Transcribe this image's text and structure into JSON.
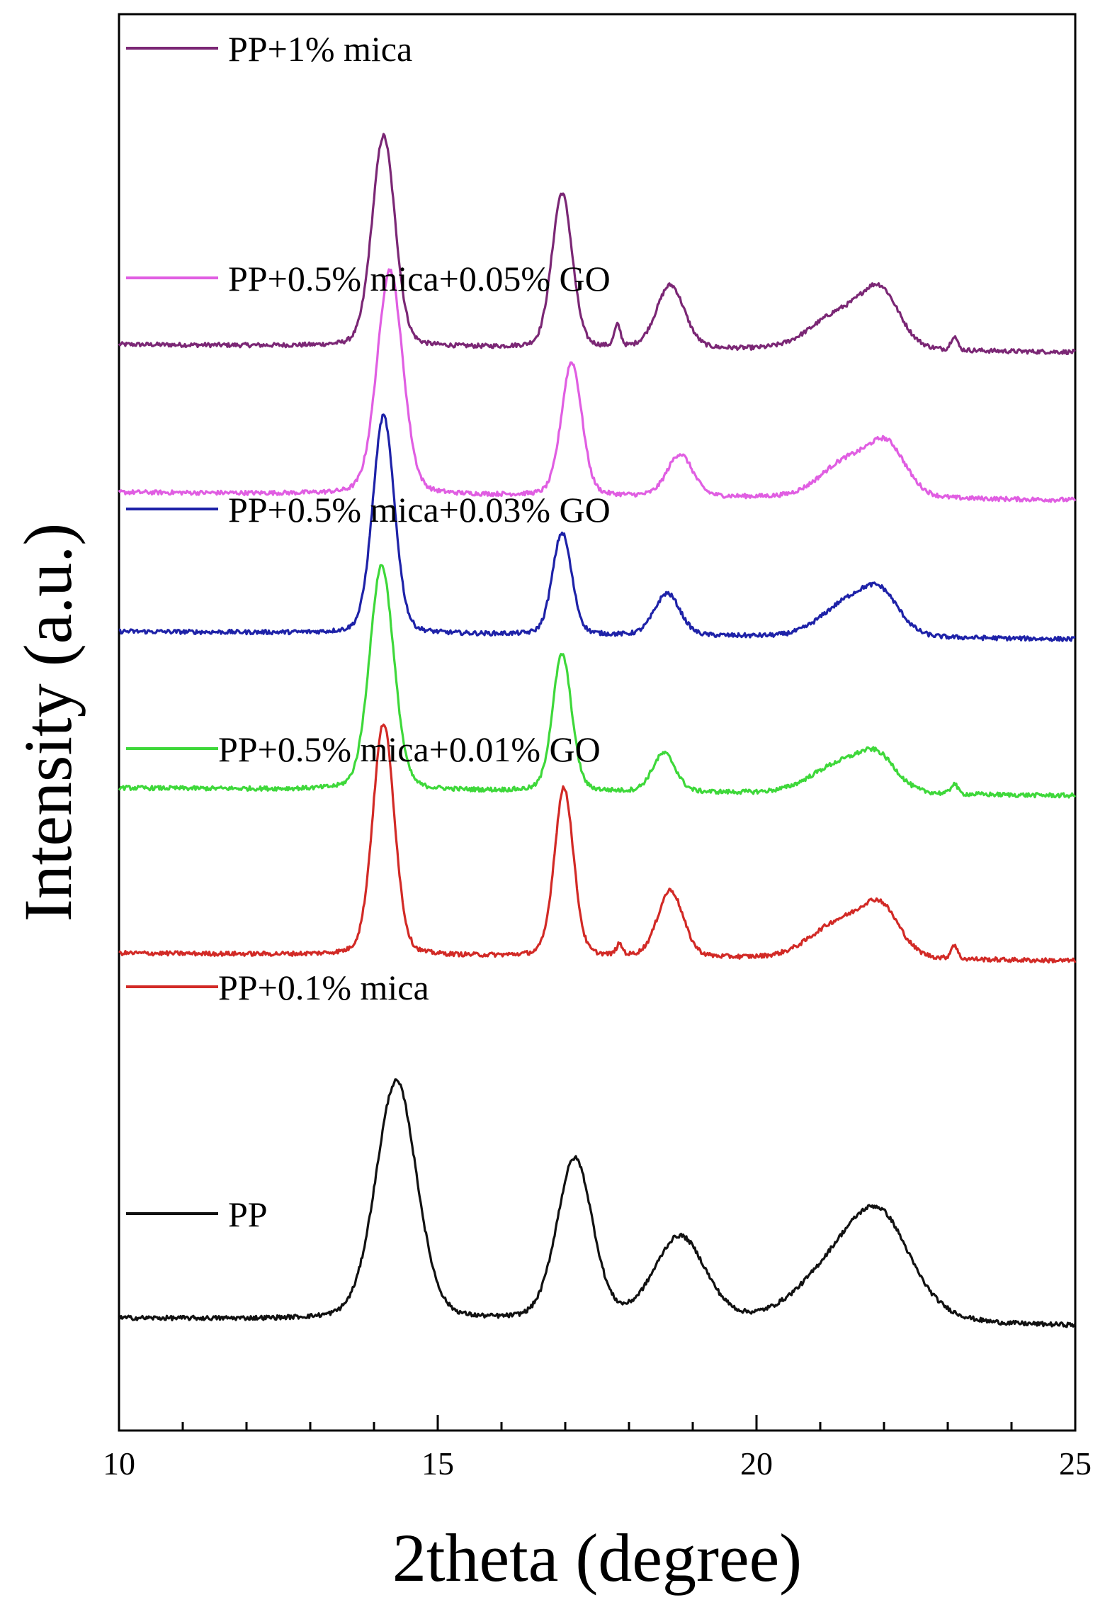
{
  "chart_data": {
    "type": "line",
    "title": "",
    "xlabel": "2theta (degree)",
    "ylabel": "Intensity (a.u.)",
    "xlim": [
      10,
      25
    ],
    "x_ticks": [
      10,
      15,
      20,
      25
    ],
    "y_ticks_shown": false,
    "grid": false,
    "series": [
      {
        "name": "PP+1% mica",
        "color": "#7b2775",
        "baseline": 7.0,
        "peaks": [
          [
            14.15,
            3.0,
            0.18
          ],
          [
            16.95,
            2.2,
            0.16
          ],
          [
            17.82,
            0.3,
            0.05
          ],
          [
            18.65,
            0.9,
            0.22
          ],
          [
            21.3,
            0.5,
            0.45
          ],
          [
            21.95,
            0.75,
            0.3
          ],
          [
            23.1,
            0.2,
            0.05
          ]
        ],
        "points": [
          [
            10,
            7.0
          ],
          [
            12,
            7.05
          ],
          [
            13.5,
            7.3
          ],
          [
            14.15,
            10.1
          ],
          [
            14.6,
            7.7
          ],
          [
            15.5,
            7.15
          ],
          [
            16.5,
            7.3
          ],
          [
            16.95,
            9.2
          ],
          [
            17.3,
            7.4
          ],
          [
            17.82,
            7.3
          ],
          [
            18.65,
            7.9
          ],
          [
            19.5,
            7.05
          ],
          [
            20.5,
            7.0
          ],
          [
            21.3,
            7.5
          ],
          [
            21.95,
            7.8
          ],
          [
            22.7,
            7.1
          ],
          [
            23.1,
            7.2
          ],
          [
            25,
            6.9
          ]
        ]
      },
      {
        "name": "PP+0.5% mica+0.05% GO",
        "color": "#e05ee2",
        "baseline": 5.3,
        "peaks": [
          [
            14.25,
            3.2,
            0.2
          ],
          [
            17.1,
            1.9,
            0.16
          ],
          [
            18.8,
            0.6,
            0.2
          ],
          [
            21.4,
            0.5,
            0.4
          ],
          [
            22.05,
            0.7,
            0.3
          ]
        ],
        "points": [
          [
            10,
            5.3
          ],
          [
            12,
            5.35
          ],
          [
            13.5,
            5.6
          ],
          [
            14.25,
            8.5
          ],
          [
            14.7,
            6.0
          ],
          [
            15.5,
            5.45
          ],
          [
            16.5,
            5.45
          ],
          [
            17.1,
            7.2
          ],
          [
            17.5,
            5.6
          ],
          [
            18.8,
            5.9
          ],
          [
            19.7,
            5.35
          ],
          [
            20.5,
            5.3
          ],
          [
            21.4,
            5.8
          ],
          [
            22.05,
            6.0
          ],
          [
            22.8,
            5.35
          ],
          [
            25,
            5.3
          ]
        ]
      },
      {
        "name": "PP+0.5% mica+0.03% GO",
        "color": "#1e22a8",
        "baseline": 3.7,
        "peaks": [
          [
            14.15,
            3.1,
            0.17
          ],
          [
            16.95,
            1.45,
            0.15
          ],
          [
            18.6,
            0.6,
            0.2
          ],
          [
            21.4,
            0.45,
            0.4
          ],
          [
            21.95,
            0.55,
            0.3
          ]
        ],
        "points": [
          [
            10,
            3.7
          ],
          [
            12,
            3.75
          ],
          [
            13.5,
            3.95
          ],
          [
            14.15,
            6.8
          ],
          [
            14.55,
            4.2
          ],
          [
            15.5,
            3.8
          ],
          [
            16.5,
            3.85
          ],
          [
            16.95,
            5.15
          ],
          [
            17.3,
            3.9
          ],
          [
            18.6,
            4.3
          ],
          [
            19.5,
            3.75
          ],
          [
            20.5,
            3.75
          ],
          [
            21.4,
            4.2
          ],
          [
            21.95,
            4.3
          ],
          [
            22.7,
            3.75
          ],
          [
            25,
            3.65
          ]
        ]
      },
      {
        "name": "PP+0.5% mica+0.01% GO",
        "color": "#3ed83a",
        "baseline": 1.9,
        "peaks": [
          [
            14.12,
            3.2,
            0.19
          ],
          [
            16.95,
            1.95,
            0.15
          ],
          [
            18.55,
            0.55,
            0.18
          ],
          [
            21.3,
            0.4,
            0.45
          ],
          [
            21.9,
            0.45,
            0.3
          ],
          [
            23.1,
            0.15,
            0.05
          ]
        ],
        "points": [
          [
            10,
            1.9
          ],
          [
            12,
            1.95
          ],
          [
            13.5,
            2.25
          ],
          [
            14.12,
            5.1
          ],
          [
            14.55,
            2.55
          ],
          [
            15.5,
            2.05
          ],
          [
            16.5,
            2.15
          ],
          [
            16.95,
            3.85
          ],
          [
            17.3,
            2.2
          ],
          [
            18.55,
            2.45
          ],
          [
            19.5,
            1.95
          ],
          [
            20.5,
            1.95
          ],
          [
            21.3,
            2.3
          ],
          [
            21.9,
            2.35
          ],
          [
            22.7,
            1.95
          ],
          [
            25,
            1.85
          ]
        ]
      },
      {
        "name": "PP+0.1% mica",
        "color": "#d22a26",
        "baseline": 0.0,
        "peaks": [
          [
            14.15,
            3.3,
            0.17
          ],
          [
            16.98,
            2.4,
            0.15
          ],
          [
            17.85,
            0.15,
            0.05
          ],
          [
            18.65,
            0.95,
            0.2
          ],
          [
            21.3,
            0.5,
            0.45
          ],
          [
            21.95,
            0.65,
            0.3
          ],
          [
            23.1,
            0.2,
            0.05
          ]
        ],
        "points": [
          [
            10,
            0.0
          ],
          [
            12,
            0.1
          ],
          [
            13.5,
            0.35
          ],
          [
            14.15,
            3.4
          ],
          [
            14.55,
            0.5
          ],
          [
            15.5,
            0.1
          ],
          [
            16.5,
            0.2
          ],
          [
            16.98,
            2.3
          ],
          [
            17.3,
            0.25
          ],
          [
            18.65,
            0.9
          ],
          [
            19.5,
            0.05
          ],
          [
            20.5,
            0.05
          ],
          [
            21.3,
            0.45
          ],
          [
            21.95,
            0.6
          ],
          [
            22.7,
            0.05
          ],
          [
            25,
            -0.1
          ]
        ]
      },
      {
        "name": "PP",
        "color": "#111111",
        "baseline": -4.2,
        "peaks": [
          [
            14.35,
            3.4,
            0.32
          ],
          [
            17.15,
            2.3,
            0.28
          ],
          [
            18.8,
            1.2,
            0.4
          ],
          [
            21.6,
            1.2,
            0.7
          ],
          [
            22.0,
            0.6,
            0.4
          ]
        ],
        "points": [
          [
            10,
            -4.2
          ],
          [
            12,
            -4.1
          ],
          [
            13.5,
            -3.6
          ],
          [
            14.35,
            -0.8
          ],
          [
            15.2,
            -3.3
          ],
          [
            16.0,
            -3.5
          ],
          [
            17.15,
            -1.9
          ],
          [
            17.8,
            -3.5
          ],
          [
            18.8,
            -2.9
          ],
          [
            19.8,
            -4.0
          ],
          [
            20.5,
            -4.0
          ],
          [
            21.6,
            -3.0
          ],
          [
            22.0,
            -2.9
          ],
          [
            22.9,
            -3.9
          ],
          [
            25,
            -4.2
          ]
        ]
      }
    ]
  }
}
